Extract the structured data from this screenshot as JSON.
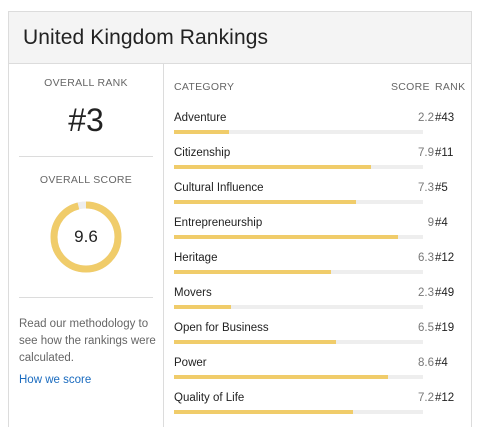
{
  "header": {
    "title": "United Kingdom Rankings"
  },
  "overall": {
    "rank_label": "OVERALL RANK",
    "rank_value": "#3",
    "score_label": "OVERALL SCORE",
    "score_value": "9.6",
    "score_fraction": 0.96
  },
  "methodology": {
    "text": "Read our methodology to see how the rankings were calculated.",
    "link_label": "How we score"
  },
  "table": {
    "headers": {
      "category": "CATEGORY",
      "score": "SCORE",
      "rank": "RANK"
    },
    "rows": [
      {
        "name": "Adventure",
        "score": "2.2",
        "rank": "#43",
        "value": 2.2
      },
      {
        "name": "Citizenship",
        "score": "7.9",
        "rank": "#11",
        "value": 7.9
      },
      {
        "name": "Cultural Influence",
        "score": "7.3",
        "rank": "#5",
        "value": 7.3
      },
      {
        "name": "Entrepreneurship",
        "score": "9",
        "rank": "#4",
        "value": 9
      },
      {
        "name": "Heritage",
        "score": "6.3",
        "rank": "#12",
        "value": 6.3
      },
      {
        "name": "Movers",
        "score": "2.3",
        "rank": "#49",
        "value": 2.3
      },
      {
        "name": "Open for Business",
        "score": "6.5",
        "rank": "#19",
        "value": 6.5
      },
      {
        "name": "Power",
        "score": "8.6",
        "rank": "#4",
        "value": 8.6
      },
      {
        "name": "Quality of Life",
        "score": "7.2",
        "rank": "#12",
        "value": 7.2
      }
    ]
  },
  "colors": {
    "accent": "#f0cc6a",
    "track": "#eeeeee",
    "link": "#1a6bbf",
    "header_bg": "#f4f4f4"
  }
}
